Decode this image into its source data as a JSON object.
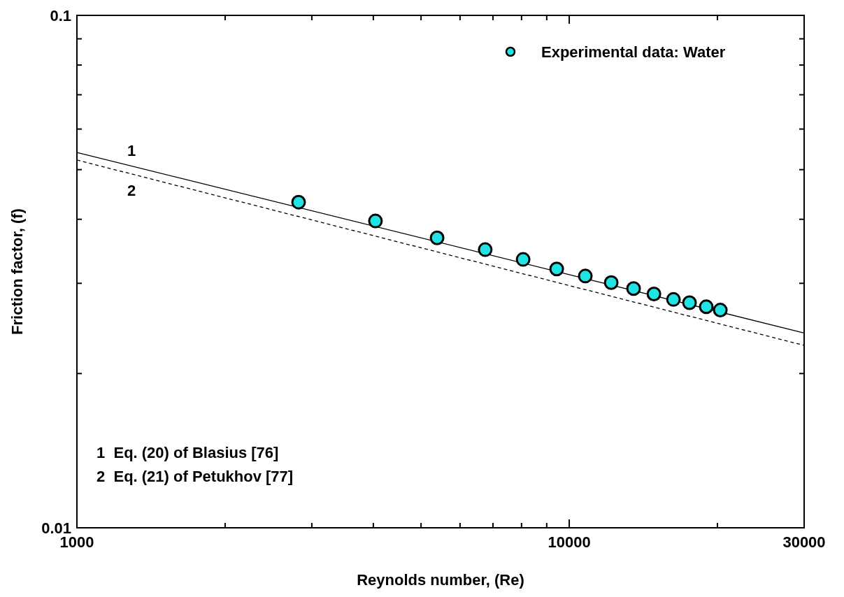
{
  "chart_data": {
    "type": "scatter",
    "xlabel": "Reynolds number, (Re)",
    "ylabel": "Friction factor, (f)",
    "log": "xy",
    "grid": false,
    "legend": "top right",
    "xlim": [
      1000,
      30000
    ],
    "ylim": [
      0.01,
      0.1
    ],
    "xticks": [
      1000,
      {
        "value": 2000,
        "label": null
      },
      {
        "value": 3000,
        "label": null
      },
      {
        "value": 4000,
        "label": null
      },
      {
        "value": 5000,
        "label": null
      },
      {
        "value": 6000,
        "label": null
      },
      {
        "value": 7000,
        "label": null
      },
      {
        "value": 8000,
        "label": null
      },
      {
        "value": 9000,
        "label": null
      },
      10000,
      {
        "value": 20000,
        "label": null
      },
      30000
    ],
    "yticks": [
      0.01,
      {
        "value": 0.02,
        "label": null
      },
      {
        "value": 0.03,
        "label": null
      },
      {
        "value": 0.04,
        "label": null
      },
      {
        "value": 0.05,
        "label": null
      },
      {
        "value": 0.06,
        "label": null
      },
      {
        "value": 0.07,
        "label": null
      },
      {
        "value": 0.08,
        "label": null
      },
      {
        "value": 0.09,
        "label": null
      },
      0.1
    ],
    "series": [
      {
        "type": "line",
        "name": "1",
        "color": "#000000",
        "line_style": "solid",
        "x": [
          1000,
          10000,
          30000
        ],
        "values": [
          0.054,
          0.0312,
          0.024
        ]
      },
      {
        "type": "line",
        "name": "2",
        "color": "#000000",
        "line_style": "dashed",
        "x": [
          1000,
          10000,
          30000
        ],
        "values": [
          0.0522,
          0.0297,
          0.0227
        ]
      },
      {
        "name": "Experimental data: Water",
        "marker": "circle",
        "color": "#22e3e3",
        "x": [
          2820,
          4040,
          5390,
          6750,
          8060,
          9430,
          10780,
          12170,
          13510,
          14860,
          16280,
          17550,
          18980,
          20270
        ],
        "values": [
          0.0432,
          0.0397,
          0.0368,
          0.0349,
          0.0334,
          0.032,
          0.031,
          0.0301,
          0.0293,
          0.0286,
          0.0279,
          0.0275,
          0.027,
          0.0266
        ]
      }
    ],
    "annotations": [
      "1  Eq. (20) of Blasius [76]",
      "2  Eq. (21) of Petukhov [77]"
    ]
  }
}
